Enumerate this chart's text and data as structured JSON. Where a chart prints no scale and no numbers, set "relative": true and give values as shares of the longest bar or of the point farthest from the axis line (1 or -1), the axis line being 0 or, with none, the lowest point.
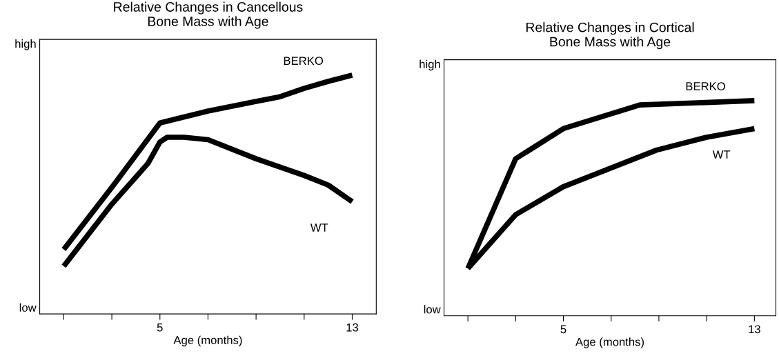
{
  "chart_data": [
    {
      "type": "line",
      "title": "Relative Changes in Cancellous\nBone Mass with Age",
      "xlabel": "Age (months)",
      "relative": true,
      "xlim": [
        0,
        14
      ],
      "xticks": [
        {
          "value": 1,
          "label": null
        },
        {
          "value": 3,
          "label": null
        },
        5,
        {
          "value": 7,
          "label": null
        },
        {
          "value": 9,
          "label": null
        },
        {
          "value": 11,
          "label": null
        },
        13
      ],
      "annotations": [
        "low",
        "high"
      ],
      "color": "#000000",
      "grid": false,
      "legend": false,
      "series": [
        {
          "name": "BERKO",
          "x": [
            1,
            3,
            5,
            7,
            9,
            10,
            11,
            12,
            13
          ],
          "values": [
            0.27,
            0.53,
            0.8,
            0.85,
            0.89,
            0.91,
            0.945,
            0.974,
            1
          ]
        },
        {
          "name": "WT",
          "x": [
            1,
            3,
            4.5,
            5,
            5.3,
            6,
            7,
            9,
            11,
            12,
            13
          ],
          "values": [
            0.2,
            0.46,
            0.63,
            0.72,
            0.74,
            0.74,
            0.73,
            0.65,
            0.58,
            0.54,
            0.47
          ]
        }
      ]
    },
    {
      "type": "line",
      "title": "Relative Changes in Cortical\nBone Mass with Age",
      "xlabel": "Age (months)",
      "relative": true,
      "xlim": [
        0,
        13.9
      ],
      "xticks": [
        {
          "value": 1,
          "label": null
        },
        {
          "value": 3,
          "label": null
        },
        5,
        {
          "value": 7,
          "label": null
        },
        {
          "value": 9,
          "label": null
        },
        {
          "value": 11,
          "label": null
        },
        13
      ],
      "annotations": [
        "low",
        "high"
      ],
      "color": "#000000",
      "grid": false,
      "legend": false,
      "series": [
        {
          "name": "BERKO",
          "x": [
            1,
            3,
            5,
            8.2,
            13
          ],
          "values": [
            0.22,
            0.73,
            0.87,
            0.98,
            1
          ]
        },
        {
          "name": "WT",
          "x": [
            1,
            3,
            5,
            8.9,
            11,
            13
          ],
          "values": [
            0.22,
            0.47,
            0.6,
            0.77,
            0.83,
            0.87
          ]
        }
      ]
    }
  ]
}
